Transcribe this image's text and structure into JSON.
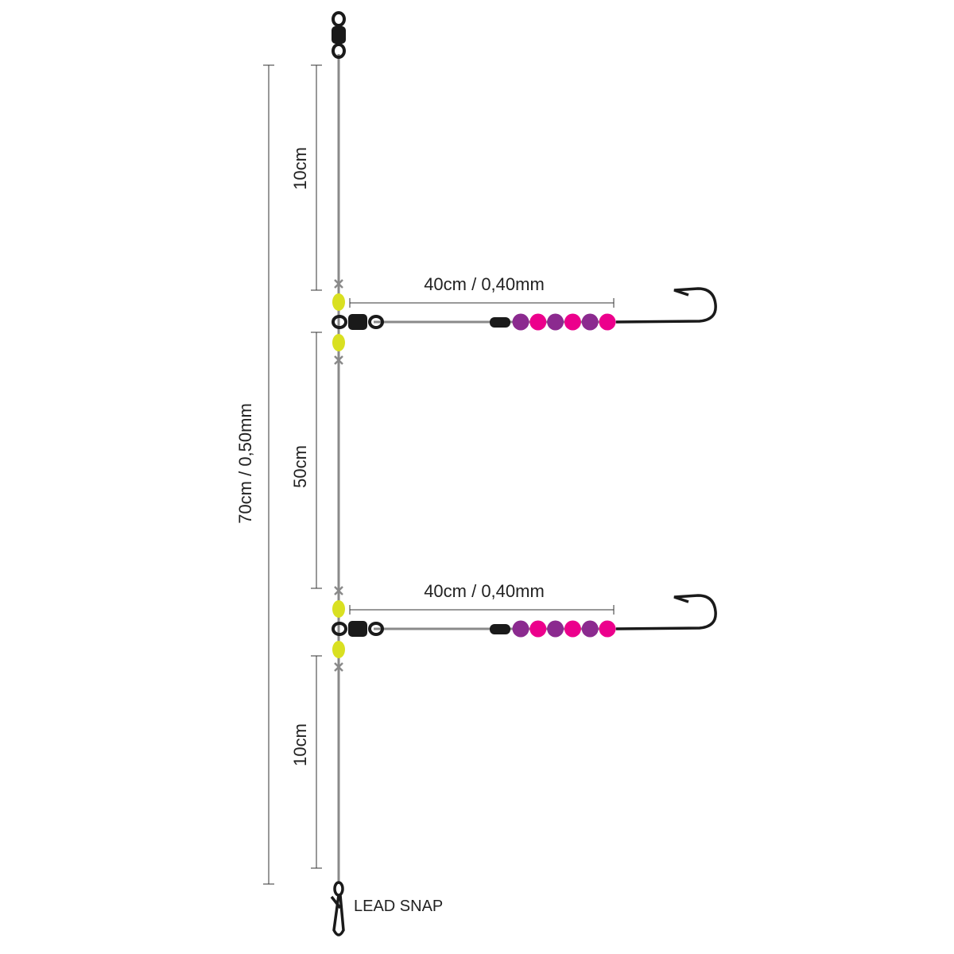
{
  "dimensions": {
    "total": "70cm / 0,50mm",
    "top_segment": "10cm",
    "middle_segment": "50cm",
    "bottom_segment": "10cm"
  },
  "branches": [
    {
      "label": "40cm / 0,40mm"
    },
    {
      "label": "40cm / 0,40mm"
    }
  ],
  "lead_snap_label": "LEAD SNAP",
  "colors": {
    "line": "#8a8a8a",
    "hardware": "#1a1a1a",
    "float_bead": "#d9e021",
    "bead_purple": "#8b2a8f",
    "bead_pink": "#ec008c",
    "dimension": "#333333"
  },
  "icons": [
    "swivel-icon",
    "hook-icon",
    "lead-snap-icon",
    "bead-icon",
    "crimp-stop-icon"
  ]
}
